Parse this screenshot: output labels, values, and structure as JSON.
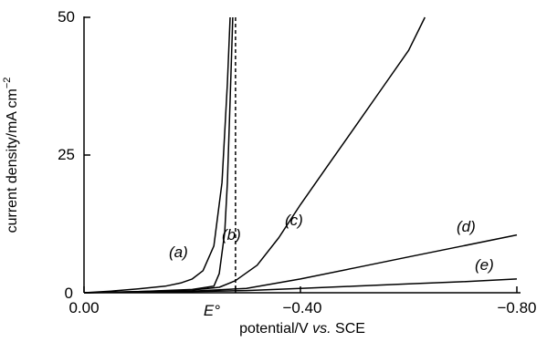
{
  "chart_data": {
    "type": "line",
    "xlabel": "potential/V vs. SCE",
    "xlabel_parts": [
      "potential/V ",
      "vs.",
      " SCE"
    ],
    "ylabel": "current density/mA cm",
    "ylabel_sup": "−2",
    "x_tick_labels": [
      "0.00",
      "E°",
      "−0.40",
      "−0.80"
    ],
    "y_tick_labels": [
      "0",
      "25",
      "50"
    ],
    "xlim": [
      0.0,
      -0.8
    ],
    "ylim": [
      0,
      50
    ],
    "grid": false,
    "e0_potential": -0.28,
    "e0_style": "dashed",
    "series": [
      {
        "name": "(a)",
        "x": [
          0.0,
          -0.05,
          -0.1,
          -0.15,
          -0.18,
          -0.2,
          -0.22,
          -0.24,
          -0.255,
          -0.265,
          -0.27
        ],
        "y": [
          0.0,
          0.3,
          0.7,
          1.2,
          1.8,
          2.5,
          4.0,
          8.5,
          20,
          38,
          50
        ]
      },
      {
        "name": "(b)",
        "x": [
          0.0,
          -0.1,
          -0.2,
          -0.24,
          -0.25,
          -0.26,
          -0.265,
          -0.27,
          -0.275
        ],
        "y": [
          0.0,
          0.2,
          0.6,
          1.2,
          3.5,
          11,
          20,
          35,
          50
        ]
      },
      {
        "name": "(c)",
        "x": [
          0.0,
          -0.1,
          -0.2,
          -0.25,
          -0.28,
          -0.32,
          -0.36,
          -0.4,
          -0.45,
          -0.5,
          -0.55,
          -0.6,
          -0.63
        ],
        "y": [
          0.0,
          0.2,
          0.5,
          1.0,
          2.2,
          5.0,
          10.0,
          16.0,
          23.0,
          30.0,
          37.0,
          44.0,
          50.0
        ]
      },
      {
        "name": "(d)",
        "x": [
          0.0,
          -0.2,
          -0.3,
          -0.4,
          -0.5,
          -0.6,
          -0.7,
          -0.8
        ],
        "y": [
          0.0,
          0.3,
          0.8,
          2.5,
          4.5,
          6.5,
          8.5,
          10.5
        ]
      },
      {
        "name": "(e)",
        "x": [
          0.0,
          -0.2,
          -0.3,
          -0.4,
          -0.5,
          -0.6,
          -0.7,
          -0.8
        ],
        "y": [
          0.0,
          0.2,
          0.4,
          0.8,
          1.2,
          1.6,
          2.0,
          2.5
        ]
      }
    ]
  }
}
